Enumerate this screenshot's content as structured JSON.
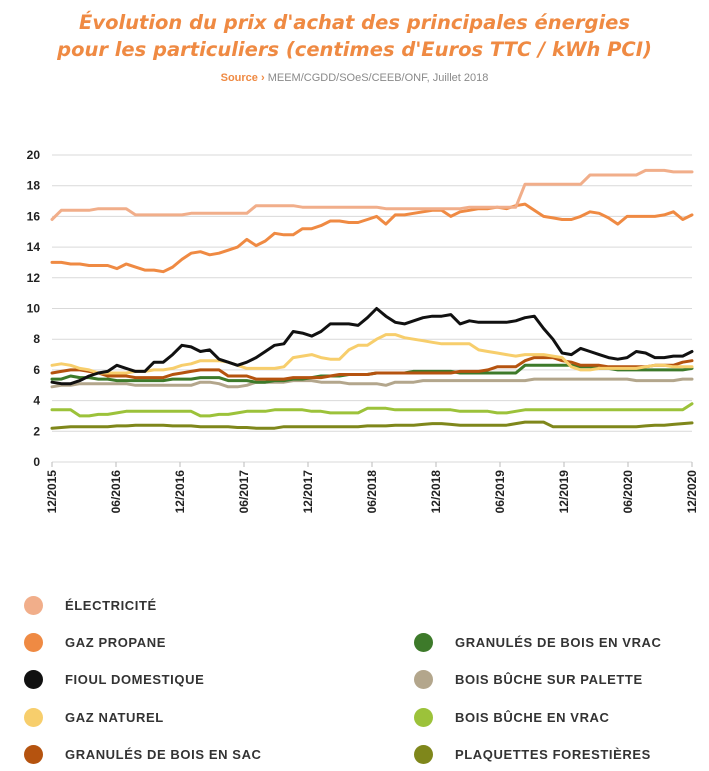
{
  "chart_data": {
    "type": "line",
    "title_line1": "Évolution du prix d'achat des principales énergies",
    "title_line2": "pour les particuliers (centimes d'Euros TTC / kWh PCI)",
    "source_label": "Source ›",
    "source_text": "MEEM/CGDD/SOeS/CEEB/ONF, Juillet 2018",
    "xlabel": "",
    "ylabel": "",
    "ylim": [
      0,
      20
    ],
    "yticks": [
      "0",
      "2",
      "4",
      "6",
      "8",
      "10",
      "12",
      "14",
      "16",
      "18",
      "20"
    ],
    "x_tick_labels": [
      "12/2015",
      "06/2016",
      "12/2016",
      "06/2017",
      "12/2017",
      "06/2018",
      "12/2018",
      "06/2019",
      "12/2019",
      "06/2020",
      "12/2020"
    ],
    "grid": "horizontal",
    "legend_position": "bottom",
    "series": [
      {
        "name": "ÉLECTRICITÉ",
        "color": "#f1ae8a",
        "values": [
          15.8,
          16.4,
          16.4,
          16.4,
          16.4,
          16.5,
          16.5,
          16.5,
          16.5,
          16.1,
          16.1,
          16.1,
          16.1,
          16.1,
          16.1,
          16.2,
          16.2,
          16.2,
          16.2,
          16.2,
          16.2,
          16.2,
          16.7,
          16.7,
          16.7,
          16.7,
          16.7,
          16.6,
          16.6,
          16.6,
          16.6,
          16.6,
          16.6,
          16.6,
          16.6,
          16.6,
          16.5,
          16.5,
          16.5,
          16.5,
          16.5,
          16.5,
          16.5,
          16.5,
          16.5,
          16.6,
          16.6,
          16.6,
          16.6,
          16.6,
          16.6,
          18.1,
          18.1,
          18.1,
          18.1,
          18.1,
          18.1,
          18.1,
          18.7,
          18.7,
          18.7,
          18.7,
          18.7,
          18.7,
          19.0,
          19.0,
          19.0,
          18.9,
          18.9,
          18.9
        ]
      },
      {
        "name": "GAZ PROPANE",
        "color": "#ef8a43",
        "values": [
          13.0,
          13.0,
          12.9,
          12.9,
          12.8,
          12.8,
          12.8,
          12.6,
          12.9,
          12.7,
          12.5,
          12.5,
          12.4,
          12.7,
          13.2,
          13.6,
          13.7,
          13.5,
          13.6,
          13.8,
          14.0,
          14.5,
          14.1,
          14.4,
          14.9,
          14.8,
          14.8,
          15.2,
          15.2,
          15.4,
          15.7,
          15.7,
          15.6,
          15.6,
          15.8,
          16.0,
          15.5,
          16.1,
          16.1,
          16.2,
          16.3,
          16.4,
          16.4,
          16.0,
          16.3,
          16.4,
          16.5,
          16.5,
          16.6,
          16.5,
          16.7,
          16.8,
          16.4,
          16.0,
          15.9,
          15.8,
          15.8,
          16.0,
          16.3,
          16.2,
          15.9,
          15.5,
          16.0,
          16.0,
          16.0,
          16.0,
          16.1,
          16.3,
          15.8,
          16.1
        ]
      },
      {
        "name": "FIOUL DOMESTIQUE",
        "color": "#111111",
        "values": [
          5.2,
          5.1,
          5.1,
          5.3,
          5.6,
          5.8,
          5.9,
          6.3,
          6.1,
          5.9,
          5.9,
          6.5,
          6.5,
          7.0,
          7.6,
          7.5,
          7.2,
          7.3,
          6.7,
          6.5,
          6.3,
          6.5,
          6.8,
          7.2,
          7.6,
          7.7,
          8.5,
          8.4,
          8.2,
          8.5,
          9.0,
          9.0,
          9.0,
          8.9,
          9.4,
          10.0,
          9.5,
          9.1,
          9.0,
          9.2,
          9.4,
          9.5,
          9.5,
          9.6,
          9.0,
          9.2,
          9.1,
          9.1,
          9.1,
          9.1,
          9.2,
          9.4,
          9.5,
          8.7,
          8.0,
          7.1,
          7.0,
          7.4,
          7.2,
          7.0,
          6.8,
          6.7,
          6.8,
          7.2,
          7.1,
          6.8,
          6.8,
          6.9,
          6.9,
          7.2
        ]
      },
      {
        "name": "GAZ NATUREL",
        "color": "#f7ce6c",
        "values": [
          6.3,
          6.4,
          6.3,
          6.1,
          6.0,
          5.8,
          5.8,
          5.8,
          5.8,
          5.9,
          5.9,
          6.0,
          6.0,
          6.1,
          6.3,
          6.4,
          6.6,
          6.6,
          6.6,
          6.5,
          6.3,
          6.1,
          6.1,
          6.1,
          6.1,
          6.2,
          6.8,
          6.9,
          7.0,
          6.8,
          6.7,
          6.7,
          7.3,
          7.6,
          7.6,
          8.0,
          8.3,
          8.3,
          8.1,
          8.0,
          7.9,
          7.8,
          7.7,
          7.7,
          7.7,
          7.7,
          7.3,
          7.2,
          7.1,
          7.0,
          6.9,
          7.0,
          7.0,
          7.0,
          6.9,
          6.8,
          6.2,
          6.0,
          6.0,
          6.1,
          6.1,
          6.1,
          6.1,
          6.1,
          6.2,
          6.3,
          6.3,
          6.2,
          6.2,
          6.2
        ]
      },
      {
        "name": "GRANULÉS DE BOIS EN SAC",
        "color": "#b5530f",
        "values": [
          5.8,
          5.9,
          6.0,
          6.0,
          5.9,
          5.8,
          5.6,
          5.6,
          5.6,
          5.5,
          5.5,
          5.5,
          5.5,
          5.7,
          5.8,
          5.9,
          6.0,
          6.0,
          6.0,
          5.6,
          5.6,
          5.6,
          5.4,
          5.4,
          5.4,
          5.4,
          5.5,
          5.5,
          5.5,
          5.5,
          5.6,
          5.7,
          5.7,
          5.7,
          5.7,
          5.8,
          5.8,
          5.8,
          5.8,
          5.8,
          5.8,
          5.8,
          5.8,
          5.8,
          5.9,
          5.9,
          5.9,
          6.0,
          6.2,
          6.2,
          6.2,
          6.6,
          6.8,
          6.8,
          6.8,
          6.6,
          6.5,
          6.3,
          6.3,
          6.3,
          6.2,
          6.2,
          6.2,
          6.2,
          6.2,
          6.3,
          6.3,
          6.3,
          6.5,
          6.6
        ]
      },
      {
        "name": "GRANULÉS DE BOIS EN VRAC",
        "color": "#3d7a2a",
        "values": [
          5.4,
          5.4,
          5.6,
          5.5,
          5.5,
          5.4,
          5.4,
          5.3,
          5.3,
          5.3,
          5.3,
          5.3,
          5.3,
          5.4,
          5.4,
          5.4,
          5.5,
          5.5,
          5.5,
          5.3,
          5.3,
          5.3,
          5.2,
          5.2,
          5.3,
          5.3,
          5.4,
          5.4,
          5.5,
          5.6,
          5.6,
          5.6,
          5.7,
          5.7,
          5.7,
          5.8,
          5.8,
          5.8,
          5.8,
          5.9,
          5.9,
          5.9,
          5.9,
          5.9,
          5.8,
          5.8,
          5.8,
          5.8,
          5.8,
          5.8,
          5.8,
          6.3,
          6.3,
          6.3,
          6.3,
          6.3,
          6.3,
          6.2,
          6.2,
          6.1,
          6.1,
          6.0,
          6.0,
          6.0,
          6.0,
          6.0,
          6.0,
          6.0,
          6.0,
          6.1
        ]
      },
      {
        "name": "BOIS BÛCHE SUR PALETTE",
        "color": "#b3a68c",
        "values": [
          4.9,
          5.0,
          5.0,
          5.1,
          5.1,
          5.1,
          5.1,
          5.1,
          5.1,
          5.0,
          5.0,
          5.0,
          5.0,
          5.0,
          5.0,
          5.0,
          5.2,
          5.2,
          5.1,
          4.9,
          4.9,
          5.0,
          5.2,
          5.2,
          5.2,
          5.2,
          5.3,
          5.3,
          5.3,
          5.2,
          5.2,
          5.2,
          5.1,
          5.1,
          5.1,
          5.1,
          5.0,
          5.2,
          5.2,
          5.2,
          5.3,
          5.3,
          5.3,
          5.3,
          5.3,
          5.3,
          5.3,
          5.3,
          5.3,
          5.3,
          5.3,
          5.3,
          5.4,
          5.4,
          5.4,
          5.4,
          5.4,
          5.4,
          5.4,
          5.4,
          5.4,
          5.4,
          5.4,
          5.3,
          5.3,
          5.3,
          5.3,
          5.3,
          5.4,
          5.4
        ]
      },
      {
        "name": "BOIS BÛCHE EN VRAC",
        "color": "#9cc23a",
        "values": [
          3.4,
          3.4,
          3.4,
          3.0,
          3.0,
          3.1,
          3.1,
          3.2,
          3.3,
          3.3,
          3.3,
          3.3,
          3.3,
          3.3,
          3.3,
          3.3,
          3.0,
          3.0,
          3.1,
          3.1,
          3.2,
          3.3,
          3.3,
          3.3,
          3.4,
          3.4,
          3.4,
          3.4,
          3.3,
          3.3,
          3.2,
          3.2,
          3.2,
          3.2,
          3.5,
          3.5,
          3.5,
          3.4,
          3.4,
          3.4,
          3.4,
          3.4,
          3.4,
          3.4,
          3.3,
          3.3,
          3.3,
          3.3,
          3.2,
          3.2,
          3.3,
          3.4,
          3.4,
          3.4,
          3.4,
          3.4,
          3.4,
          3.4,
          3.4,
          3.4,
          3.4,
          3.4,
          3.4,
          3.4,
          3.4,
          3.4,
          3.4,
          3.4,
          3.4,
          3.8
        ]
      },
      {
        "name": "PLAQUETTES FORESTIÈRES",
        "color": "#7f871b",
        "values": [
          2.2,
          2.25,
          2.3,
          2.3,
          2.3,
          2.3,
          2.3,
          2.35,
          2.35,
          2.4,
          2.4,
          2.4,
          2.4,
          2.35,
          2.35,
          2.35,
          2.3,
          2.3,
          2.3,
          2.3,
          2.25,
          2.25,
          2.2,
          2.2,
          2.2,
          2.3,
          2.3,
          2.3,
          2.3,
          2.3,
          2.3,
          2.3,
          2.3,
          2.3,
          2.35,
          2.35,
          2.35,
          2.4,
          2.4,
          2.4,
          2.45,
          2.5,
          2.5,
          2.45,
          2.4,
          2.4,
          2.4,
          2.4,
          2.4,
          2.4,
          2.5,
          2.6,
          2.6,
          2.6,
          2.3,
          2.3,
          2.3,
          2.3,
          2.3,
          2.3,
          2.3,
          2.3,
          2.3,
          2.3,
          2.35,
          2.4,
          2.4,
          2.45,
          2.5,
          2.55
        ]
      }
    ]
  }
}
